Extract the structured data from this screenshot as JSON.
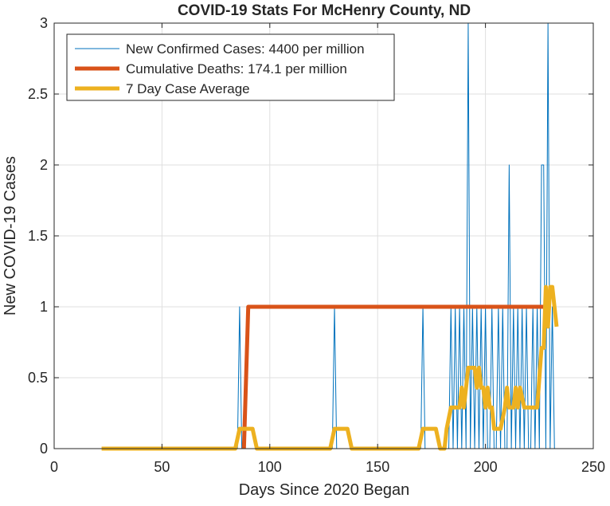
{
  "chart_data": {
    "type": "line",
    "title": "COVID-19 Stats For McHenry County, ND",
    "xlabel": "Days Since 2020 Began",
    "ylabel": "New COVID-19 Cases",
    "xlim": [
      0,
      250
    ],
    "ylim": [
      0,
      3
    ],
    "xticks": [
      0,
      50,
      100,
      150,
      200,
      250
    ],
    "xtick_labels": [
      "0",
      "50",
      "100",
      "150",
      "200",
      "250"
    ],
    "yticks": [
      0,
      0.5,
      1,
      1.5,
      2,
      2.5,
      3
    ],
    "ytick_labels": [
      "0",
      "0.5",
      "1",
      "1.5",
      "2",
      "2.5",
      "3"
    ],
    "grid": true,
    "legend_position": "top-left",
    "series": [
      {
        "name": "New Confirmed Cases: 4400 per million",
        "color": "#0072BD",
        "x": [
          22,
          85,
          86,
          87,
          129,
          130,
          131,
          170,
          171,
          172,
          183,
          184,
          185,
          186,
          187,
          188,
          189,
          190,
          191,
          192,
          193,
          194,
          195,
          196,
          197,
          198,
          199,
          200,
          201,
          202,
          203,
          204,
          205,
          206,
          207,
          208,
          209,
          210,
          211,
          212,
          213,
          214,
          215,
          216,
          217,
          218,
          219,
          220,
          221,
          222,
          223,
          224,
          225,
          226,
          227,
          228,
          229,
          230,
          231,
          232
        ],
        "y": [
          0,
          0,
          1,
          0,
          0,
          1,
          0,
          0,
          1,
          0,
          0,
          1,
          0,
          1,
          0,
          1,
          0,
          1,
          0,
          3,
          0,
          1,
          0,
          1,
          0,
          1,
          0,
          1,
          0,
          0,
          1,
          0,
          0,
          1,
          0,
          1,
          0,
          0,
          2,
          0,
          1,
          0,
          1,
          0,
          1,
          0,
          1,
          0,
          0,
          1,
          0,
          1,
          0,
          2,
          2,
          0,
          3,
          0,
          1,
          0
        ]
      },
      {
        "name": "Cumulative Deaths: 174.1 per million",
        "color": "#D95319",
        "x": [
          88,
          90,
          228
        ],
        "y": [
          0,
          1,
          1
        ]
      },
      {
        "name": "7 Day Case Average",
        "color": "#EDB120",
        "x": [
          22,
          84,
          86,
          92,
          94,
          128,
          130,
          136,
          138,
          169,
          171,
          177,
          179,
          181,
          182,
          184,
          186,
          188,
          189,
          190,
          191,
          192,
          195,
          196,
          197,
          198,
          199,
          200,
          201,
          202,
          203,
          204,
          205,
          207,
          209,
          210,
          211,
          212,
          213,
          214,
          215,
          216,
          218,
          219,
          220,
          222,
          224,
          226,
          227,
          228,
          229,
          230,
          231,
          232,
          233
        ],
        "y": [
          0,
          0,
          0.14,
          0.14,
          0,
          0,
          0.14,
          0.14,
          0,
          0,
          0.14,
          0.14,
          0,
          0,
          0.14,
          0.29,
          0.29,
          0.29,
          0.43,
          0.29,
          0.43,
          0.57,
          0.57,
          0.43,
          0.57,
          0.43,
          0.43,
          0.29,
          0.43,
          0.29,
          0.29,
          0.14,
          0.14,
          0.14,
          0.29,
          0.43,
          0.29,
          0.29,
          0.29,
          0.43,
          0.29,
          0.43,
          0.29,
          0.29,
          0.29,
          0.29,
          0.29,
          0.71,
          0.71,
          1.14,
          0.86,
          1.14,
          1.14,
          1,
          0.86
        ]
      }
    ]
  }
}
